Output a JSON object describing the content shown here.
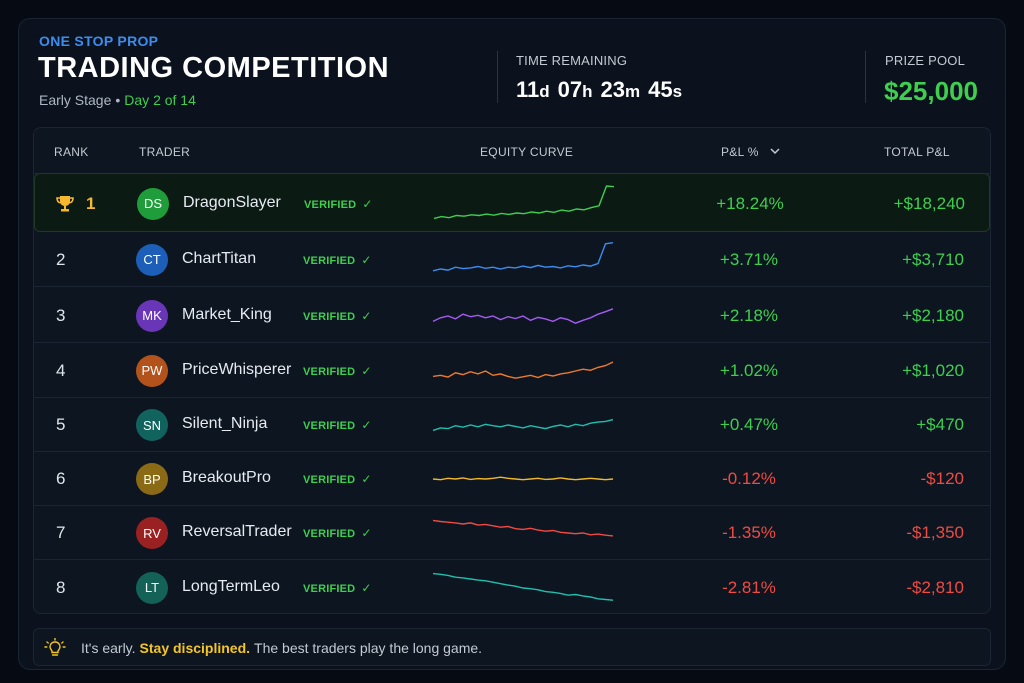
{
  "header": {
    "brand": "ONE STOP PROP",
    "title": "TRADING COMPETITION",
    "stage": "Early Stage",
    "separator": "•",
    "day": "Day 2 of 14",
    "time_label": "TIME REMAINING",
    "timer": {
      "days": "11",
      "days_unit": "d",
      "hours": "07",
      "hours_unit": "h",
      "minutes": "23",
      "minutes_unit": "m",
      "seconds": "45",
      "seconds_unit": "s"
    },
    "prize_label": "PRIZE POOL",
    "prize_value": "$25,000"
  },
  "table": {
    "columns": {
      "rank": "RANK",
      "trader": "TRADER",
      "equity": "EQUITY CURVE",
      "pnl_pct": "P&L %",
      "total": "TOTAL P&L"
    },
    "sort_icon": "chevron-down-icon",
    "rows": [
      {
        "rank": "1",
        "initials": "DS",
        "name": "DragonSlayer",
        "verified": "VERIFIED",
        "pnl_pct": "+18.24%",
        "total": "+$18,240",
        "avatar_color": "#1f9d3a",
        "line_color": "#3ecf4f",
        "positive": true,
        "curve": [
          0.1,
          0.15,
          0.12,
          0.18,
          0.16,
          0.2,
          0.18,
          0.22,
          0.19,
          0.24,
          0.21,
          0.25,
          0.23,
          0.28,
          0.25,
          0.3,
          0.27,
          0.33,
          0.3,
          0.36,
          0.34,
          0.4,
          0.45,
          1.0,
          0.98
        ]
      },
      {
        "rank": "2",
        "initials": "CT",
        "name": "ChartTitan",
        "verified": "VERIFIED",
        "pnl_pct": "+3.71%",
        "total": "+$3,710",
        "avatar_color": "#1d5fb8",
        "line_color": "#3b8df0",
        "positive": true,
        "curve": [
          0.2,
          0.25,
          0.22,
          0.3,
          0.26,
          0.28,
          0.32,
          0.27,
          0.3,
          0.25,
          0.3,
          0.28,
          0.33,
          0.29,
          0.35,
          0.3,
          0.32,
          0.28,
          0.34,
          0.31,
          0.36,
          0.33,
          0.4,
          0.95,
          0.98
        ]
      },
      {
        "rank": "3",
        "initials": "MK",
        "name": "Market_King",
        "verified": "VERIFIED",
        "pnl_pct": "+2.18%",
        "total": "+$2,180",
        "avatar_color": "#6a36b8",
        "line_color": "#a35cf0",
        "positive": true,
        "curve": [
          0.35,
          0.45,
          0.5,
          0.42,
          0.55,
          0.48,
          0.52,
          0.45,
          0.5,
          0.4,
          0.48,
          0.43,
          0.5,
          0.38,
          0.46,
          0.42,
          0.35,
          0.45,
          0.4,
          0.3,
          0.38,
          0.45,
          0.55,
          0.62,
          0.7
        ]
      },
      {
        "rank": "4",
        "initials": "PW",
        "name": "PriceWhisperer",
        "verified": "VERIFIED",
        "pnl_pct": "+1.02%",
        "total": "+$1,020",
        "avatar_color": "#b4521c",
        "line_color": "#f07a2a",
        "positive": true,
        "curve": [
          0.35,
          0.38,
          0.33,
          0.45,
          0.4,
          0.48,
          0.42,
          0.5,
          0.38,
          0.42,
          0.35,
          0.3,
          0.34,
          0.38,
          0.32,
          0.4,
          0.36,
          0.42,
          0.45,
          0.5,
          0.55,
          0.52,
          0.6,
          0.65,
          0.75
        ]
      },
      {
        "rank": "5",
        "initials": "SN",
        "name": "Silent_Ninja",
        "verified": "VERIFIED",
        "pnl_pct": "+0.47%",
        "total": "+$470",
        "avatar_color": "#11645e",
        "line_color": "#1fbfae",
        "positive": true,
        "curve": [
          0.35,
          0.42,
          0.4,
          0.48,
          0.44,
          0.5,
          0.45,
          0.52,
          0.48,
          0.45,
          0.5,
          0.46,
          0.42,
          0.48,
          0.44,
          0.4,
          0.46,
          0.5,
          0.45,
          0.52,
          0.48,
          0.55,
          0.58,
          0.6,
          0.65
        ]
      },
      {
        "rank": "6",
        "initials": "BP",
        "name": "BreakoutPro",
        "verified": "VERIFIED",
        "pnl_pct": "-0.12%",
        "total": "-$120",
        "avatar_color": "#8a6a14",
        "line_color": "#f0b82a",
        "positive": false,
        "curve": [
          0.5,
          0.48,
          0.52,
          0.5,
          0.53,
          0.49,
          0.51,
          0.5,
          0.52,
          0.55,
          0.52,
          0.5,
          0.48,
          0.5,
          0.52,
          0.49,
          0.5,
          0.53,
          0.5,
          0.48,
          0.5,
          0.52,
          0.5,
          0.48,
          0.5
        ]
      },
      {
        "rank": "7",
        "initials": "RV",
        "name": "ReversalTrader",
        "verified": "VERIFIED",
        "pnl_pct": "-1.35%",
        "total": "-$1,350",
        "avatar_color": "#9a2121",
        "line_color": "#f04a42",
        "positive": false,
        "curve": [
          0.85,
          0.82,
          0.8,
          0.78,
          0.75,
          0.78,
          0.72,
          0.74,
          0.7,
          0.66,
          0.68,
          0.62,
          0.6,
          0.63,
          0.58,
          0.55,
          0.57,
          0.52,
          0.5,
          0.48,
          0.5,
          0.45,
          0.47,
          0.44,
          0.42
        ]
      },
      {
        "rank": "8",
        "initials": "LT",
        "name": "LongTermLeo",
        "verified": "VERIFIED",
        "pnl_pct": "-2.81%",
        "total": "-$2,810",
        "avatar_color": "#136157",
        "line_color": "#1fbfae",
        "positive": false,
        "curve": [
          0.9,
          0.88,
          0.85,
          0.8,
          0.78,
          0.75,
          0.72,
          0.7,
          0.66,
          0.62,
          0.58,
          0.55,
          0.5,
          0.48,
          0.45,
          0.4,
          0.38,
          0.35,
          0.3,
          0.32,
          0.28,
          0.25,
          0.2,
          0.18,
          0.16
        ]
      }
    ]
  },
  "tip": {
    "icon": "lightbulb-icon",
    "before": "It's early.",
    "emphasis": "Stay disciplined.",
    "after": "The best traders play the long game."
  }
}
